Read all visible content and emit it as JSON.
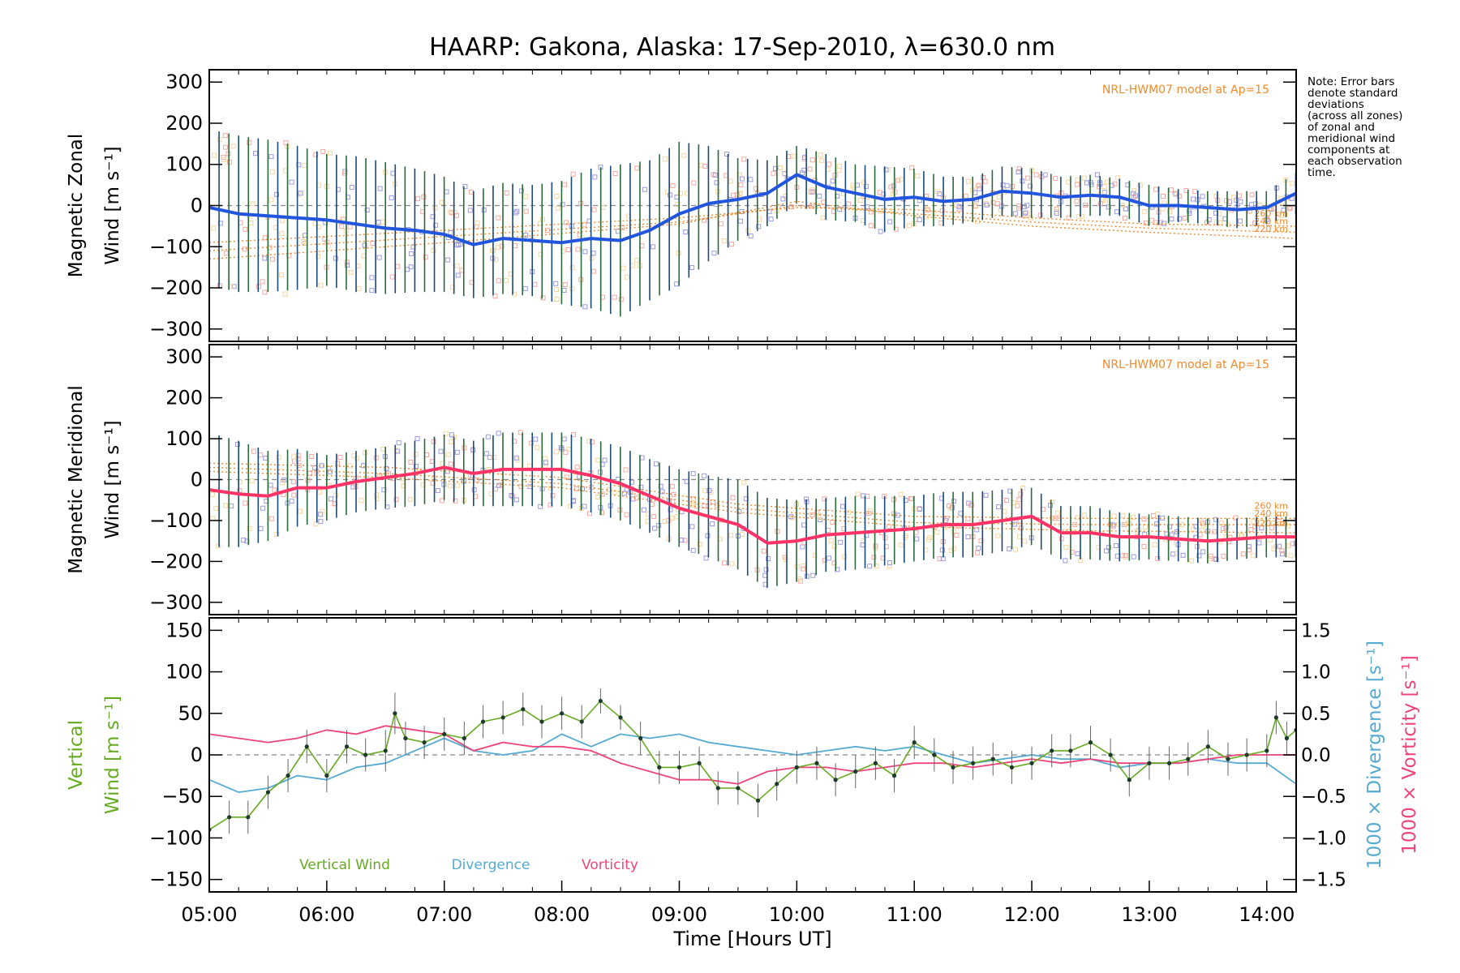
{
  "title": "HAARP: Gakona,  Alaska: 17-Sep-2010, λ=630.0 nm",
  "note": "Note: Error bars\ndenote standard\ndeviations\n(across all zones)\nof zonal and\nmeridional wind\ncomponents at\neach observation\ntime.",
  "colors": {
    "zonal": "#2255dd",
    "meridional": "#ff3366",
    "vertical": "#66aa22",
    "divergence": "#55aad2",
    "vorticity": "#ee4477",
    "model": "#f08a2c",
    "scatter_blue": "#9a9ae0",
    "scatter_pink": "#f4a8a0",
    "scatter_yellow": "#f6d6a0"
  },
  "chart_data": [
    {
      "type": "line",
      "name": "zonal",
      "ylabel": [
        "Magnetic Zonal",
        "Wind [m s⁻¹]"
      ],
      "ylim": [
        -330,
        330
      ],
      "yticks": [
        -300,
        -200,
        -100,
        0,
        100,
        200,
        300
      ],
      "xlim": [
        5.0,
        14.25
      ],
      "model_label": "NRL-HWM07 model at Ap=15",
      "model_altitude_labels": [
        "260 km",
        "240 km",
        "220 km"
      ],
      "series": [
        {
          "name": "",
          "x": [
            5.0,
            5.25,
            5.5,
            5.75,
            6.0,
            6.25,
            6.5,
            6.75,
            7.0,
            7.25,
            7.5,
            7.75,
            8.0,
            8.25,
            8.5,
            8.75,
            9.0,
            9.25,
            9.5,
            9.75,
            10.0,
            10.25,
            10.5,
            10.75,
            11.0,
            11.25,
            11.5,
            11.75,
            12.0,
            12.25,
            12.5,
            12.75,
            13.0,
            13.25,
            13.5,
            13.75,
            14.0,
            14.25
          ],
          "y": [
            -5,
            -20,
            -25,
            -30,
            -35,
            -45,
            -55,
            -60,
            -70,
            -95,
            -80,
            -85,
            -90,
            -80,
            -85,
            -60,
            -20,
            5,
            15,
            30,
            75,
            45,
            30,
            15,
            20,
            10,
            15,
            35,
            30,
            20,
            25,
            20,
            0,
            0,
            -5,
            -10,
            -5,
            30
          ],
          "error": [
            190,
            190,
            185,
            175,
            160,
            165,
            160,
            150,
            140,
            130,
            135,
            135,
            150,
            170,
            185,
            170,
            175,
            140,
            100,
            80,
            70,
            80,
            70,
            80,
            70,
            60,
            55,
            60,
            60,
            50,
            50,
            45,
            50,
            40,
            40,
            45,
            40,
            50
          ]
        }
      ],
      "model_lines": [
        {
          "label": "260 km",
          "x": [
            5.0,
            7.0,
            9.0,
            10.0,
            11.0,
            12.0,
            13.0,
            14.25
          ],
          "y": [
            -90,
            -60,
            -30,
            -5,
            -10,
            -30,
            -45,
            -50
          ]
        },
        {
          "label": "240 km",
          "x": [
            5.0,
            7.0,
            9.0,
            10.0,
            11.0,
            12.0,
            13.0,
            14.25
          ],
          "y": [
            -110,
            -75,
            -40,
            0,
            -20,
            -40,
            -55,
            -65
          ]
        },
        {
          "label": "220 km",
          "x": [
            5.0,
            7.0,
            9.0,
            10.0,
            11.0,
            12.0,
            13.0,
            14.25
          ],
          "y": [
            -130,
            -90,
            -45,
            10,
            -25,
            -50,
            -65,
            -80
          ]
        }
      ]
    },
    {
      "type": "line",
      "name": "meridional",
      "ylabel": [
        "Magnetic Meridional",
        "Wind [m s⁻¹]"
      ],
      "ylim": [
        -330,
        330
      ],
      "yticks": [
        -300,
        -200,
        -100,
        0,
        100,
        200,
        300
      ],
      "xlim": [
        5.0,
        14.25
      ],
      "model_label": "NRL-HWM07 model at Ap=15",
      "model_altitude_labels": [
        "260 km",
        "240 km",
        "220 km"
      ],
      "series": [
        {
          "name": "",
          "x": [
            5.0,
            5.25,
            5.5,
            5.75,
            6.0,
            6.25,
            6.5,
            6.75,
            7.0,
            7.25,
            7.5,
            7.75,
            8.0,
            8.25,
            8.5,
            8.75,
            9.0,
            9.25,
            9.5,
            9.75,
            10.0,
            10.25,
            10.5,
            10.75,
            11.0,
            11.25,
            11.5,
            11.75,
            12.0,
            12.25,
            12.5,
            12.75,
            13.0,
            13.25,
            13.5,
            13.75,
            14.0,
            14.25
          ],
          "y": [
            -25,
            -35,
            -40,
            -20,
            -20,
            -5,
            5,
            15,
            30,
            15,
            25,
            25,
            25,
            10,
            -10,
            -40,
            -70,
            -90,
            -110,
            -155,
            -150,
            -135,
            -130,
            -125,
            -120,
            -110,
            -110,
            -100,
            -90,
            -130,
            -130,
            -140,
            -140,
            -145,
            -150,
            -145,
            -140,
            -140
          ],
          "error": [
            140,
            130,
            110,
            95,
            80,
            75,
            75,
            80,
            80,
            80,
            90,
            90,
            90,
            90,
            90,
            90,
            95,
            100,
            110,
            110,
            100,
            90,
            90,
            85,
            80,
            80,
            80,
            75,
            70,
            65,
            65,
            60,
            55,
            55,
            55,
            50,
            50,
            50
          ]
        }
      ],
      "model_lines": [
        {
          "label": "260 km",
          "x": [
            5.0,
            6.5,
            8.0,
            9.5,
            11.0,
            12.5,
            14.25
          ],
          "y": [
            40,
            30,
            5,
            -60,
            -90,
            -95,
            -95
          ]
        },
        {
          "label": "240 km",
          "x": [
            5.0,
            6.5,
            8.0,
            9.5,
            11.0,
            12.5,
            14.25
          ],
          "y": [
            30,
            15,
            -10,
            -70,
            -105,
            -110,
            -110
          ]
        },
        {
          "label": "220 km",
          "x": [
            5.0,
            6.5,
            8.0,
            9.5,
            11.0,
            12.5,
            14.25
          ],
          "y": [
            20,
            5,
            -20,
            -80,
            -115,
            -125,
            -130
          ]
        }
      ]
    },
    {
      "type": "line",
      "name": "vertical",
      "ylabel": [
        "Vertical",
        "Wind [m s⁻¹]"
      ],
      "ylabel_right_1": "1000 × Divergence [s⁻¹]",
      "ylabel_right_2": "1000 × Vorticity [s⁻¹]",
      "ylim": [
        -165,
        165
      ],
      "yticks": [
        -150,
        -100,
        -50,
        0,
        50,
        100,
        150
      ],
      "ylim_right": [
        -1.65,
        1.65
      ],
      "yticks_right": [
        -1.5,
        -1.0,
        -0.5,
        0.0,
        0.5,
        1.0,
        1.5
      ],
      "yticklabels_right": [
        "−1.5",
        "−1.0",
        "−0.5",
        "0.0",
        "0.5",
        "1.0",
        "1.5"
      ],
      "xlim": [
        5.0,
        14.25
      ],
      "xticks": [
        5,
        6,
        7,
        8,
        9,
        10,
        11,
        12,
        13,
        14
      ],
      "xticklabels": [
        "05:00",
        "06:00",
        "07:00",
        "08:00",
        "09:00",
        "10:00",
        "11:00",
        "12:00",
        "13:00",
        "14:00"
      ],
      "xlabel": "Time [Hours UT]",
      "legend": [
        "Vertical Wind",
        "Divergence",
        "Vorticity"
      ],
      "series": [
        {
          "name": "Vertical Wind",
          "x": [
            5.0,
            5.17,
            5.33,
            5.5,
            5.67,
            5.83,
            6.0,
            6.17,
            6.33,
            6.5,
            6.58,
            6.67,
            6.83,
            7.0,
            7.17,
            7.33,
            7.5,
            7.67,
            7.83,
            8.0,
            8.17,
            8.33,
            8.5,
            8.67,
            8.83,
            9.0,
            9.17,
            9.33,
            9.5,
            9.67,
            9.83,
            10.0,
            10.17,
            10.33,
            10.5,
            10.67,
            10.83,
            11.0,
            11.17,
            11.33,
            11.5,
            11.67,
            11.83,
            12.0,
            12.17,
            12.33,
            12.5,
            12.67,
            12.83,
            13.0,
            13.17,
            13.33,
            13.5,
            13.67,
            13.83,
            14.0,
            14.08,
            14.17,
            14.25
          ],
          "y": [
            -90,
            -75,
            -75,
            -45,
            -25,
            10,
            -25,
            10,
            0,
            5,
            50,
            20,
            15,
            25,
            20,
            40,
            45,
            55,
            40,
            50,
            40,
            65,
            45,
            20,
            -15,
            -15,
            -10,
            -40,
            -40,
            -55,
            -35,
            -15,
            -10,
            -30,
            -20,
            -10,
            -25,
            15,
            0,
            -15,
            -10,
            -5,
            -15,
            -10,
            5,
            5,
            15,
            0,
            -30,
            -10,
            -10,
            -5,
            10,
            -5,
            0,
            5,
            45,
            20,
            30
          ],
          "error": [
            20,
            20,
            20,
            20,
            20,
            20,
            20,
            20,
            20,
            25,
            25,
            20,
            20,
            20,
            20,
            20,
            20,
            20,
            20,
            20,
            20,
            15,
            15,
            20,
            20,
            20,
            20,
            20,
            20,
            20,
            20,
            20,
            20,
            20,
            20,
            20,
            20,
            20,
            20,
            20,
            20,
            20,
            20,
            20,
            20,
            20,
            20,
            20,
            20,
            20,
            20,
            20,
            20,
            20,
            20,
            20,
            20,
            20,
            20
          ]
        },
        {
          "name": "Divergence",
          "x": [
            5.0,
            5.25,
            5.5,
            5.75,
            6.0,
            6.25,
            6.5,
            6.75,
            7.0,
            7.25,
            7.5,
            7.75,
            8.0,
            8.25,
            8.5,
            8.75,
            9.0,
            9.25,
            9.5,
            9.75,
            10.0,
            10.25,
            10.5,
            10.75,
            11.0,
            11.25,
            11.5,
            11.75,
            12.0,
            12.25,
            12.5,
            12.75,
            13.0,
            13.25,
            13.5,
            13.75,
            14.0,
            14.25
          ],
          "y": [
            -0.3,
            -0.45,
            -0.4,
            -0.25,
            -0.3,
            -0.15,
            -0.1,
            0.05,
            0.2,
            0.05,
            0.0,
            0.05,
            0.25,
            0.1,
            0.25,
            0.2,
            0.25,
            0.15,
            0.1,
            0.05,
            0.0,
            0.05,
            0.1,
            0.05,
            0.1,
            0.0,
            -0.1,
            -0.05,
            0.0,
            -0.05,
            -0.05,
            -0.15,
            -0.1,
            -0.1,
            -0.05,
            -0.1,
            -0.1,
            -0.35
          ]
        },
        {
          "name": "Vorticity",
          "x": [
            5.0,
            5.25,
            5.5,
            5.75,
            6.0,
            6.25,
            6.5,
            6.75,
            7.0,
            7.25,
            7.5,
            7.75,
            8.0,
            8.25,
            8.5,
            8.75,
            9.0,
            9.25,
            9.5,
            9.75,
            10.0,
            10.25,
            10.5,
            10.75,
            11.0,
            11.25,
            11.5,
            11.75,
            12.0,
            12.25,
            12.5,
            12.75,
            13.0,
            13.25,
            13.5,
            13.75,
            14.0,
            14.25
          ],
          "y": [
            0.25,
            0.2,
            0.15,
            0.2,
            0.3,
            0.25,
            0.35,
            0.3,
            0.25,
            0.05,
            0.15,
            0.1,
            0.1,
            0.05,
            -0.1,
            -0.2,
            -0.3,
            -0.3,
            -0.35,
            -0.2,
            -0.15,
            -0.15,
            -0.2,
            -0.15,
            -0.1,
            -0.1,
            -0.15,
            -0.1,
            -0.05,
            -0.1,
            -0.05,
            -0.1,
            -0.1,
            -0.1,
            -0.05,
            0.0,
            0.0,
            0.0
          ]
        }
      ]
    }
  ]
}
